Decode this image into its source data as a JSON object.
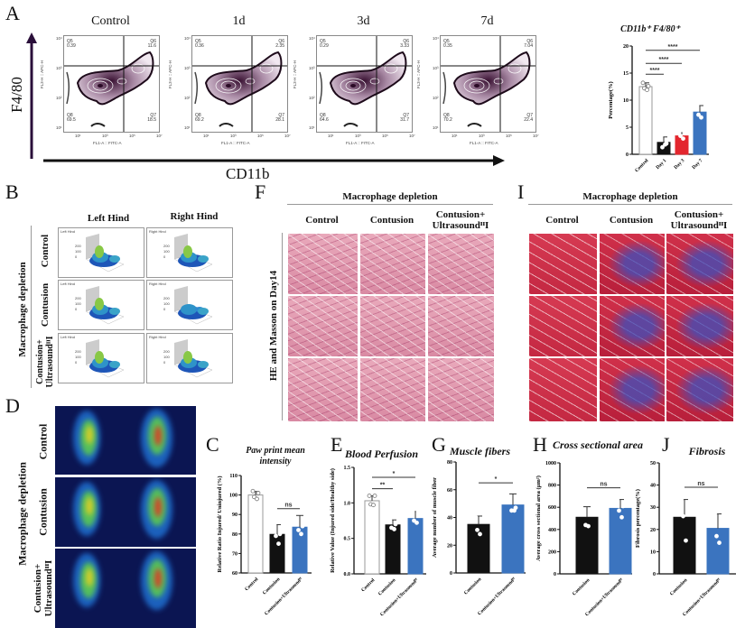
{
  "panels": {
    "A": "A",
    "B": "B",
    "C": "C",
    "D": "D",
    "E": "E",
    "F": "F",
    "G": "G",
    "H": "H",
    "I": "I",
    "J": "J"
  },
  "flow": {
    "y_axis_label": "F4/80",
    "x_axis_label": "CD11b",
    "plot_x_label": "FL1-A :: FITC-A",
    "plot_y_label": "FL3-H :: APC-H",
    "x_ticks": [
      "10¹",
      "10³",
      "10⁵",
      "10⁷"
    ],
    "y_ticks": [
      "10⁴",
      "10³",
      "10²",
      "10¹"
    ],
    "plots": [
      {
        "title": "Control",
        "q5_name": "Q5",
        "q5": "0.39",
        "q6_name": "Q6",
        "q6": "11.6",
        "q8_name": "Q8",
        "q8": "69.5",
        "q7_name": "Q7",
        "q7": "18.5"
      },
      {
        "title": "1d",
        "q5_name": "Q5",
        "q5": "0.36",
        "q6_name": "Q6",
        "q6": "2.35",
        "q8_name": "Q8",
        "q8": "69.2",
        "q7_name": "Q7",
        "q7": "28.1"
      },
      {
        "title": "3d",
        "q5_name": "Q5",
        "q5": "0.29",
        "q6_name": "Q6",
        "q6": "3.33",
        "q8_name": "Q8",
        "q8": "64.6",
        "q7_name": "Q7",
        "q7": "31.7"
      },
      {
        "title": "7d",
        "q5_name": "Q5",
        "q5": "0.35",
        "q6_name": "Q6",
        "q6": "7.04",
        "q8_name": "Q8",
        "q8": "70.2",
        "q7_name": "Q7",
        "q7": "22.4"
      }
    ]
  },
  "gait": {
    "group_label": "Macrophage depletion",
    "col_left": "Left Hind",
    "col_right": "Right Hind",
    "rows": [
      "Control",
      "Contusion",
      "Contusion+ UltrasoundᴵᴵI"
    ],
    "cell_left": "Left Hind",
    "cell_right": "Right Hind",
    "z_ticks": [
      "200",
      "100",
      "0"
    ]
  },
  "histology_he": {
    "title": "Macrophage depletion",
    "side_label": "HE and Masson on Day14",
    "cols": [
      "Control",
      "Contusion",
      "Contusion+ UltrasoundᴵᴵI"
    ]
  },
  "histology_masson": {
    "title": "Macrophage depletion",
    "cols": [
      "Control",
      "Contusion",
      "Contusion+ UltrasoundᴵᴵI"
    ]
  },
  "perfusion_images": {
    "group_label": "Macrophage depletion",
    "rows": [
      "Control",
      "Contusion",
      "Contusion+ UltrasoundᴵᴵI"
    ]
  },
  "colors": {
    "control": "#ffffff",
    "contusion": "#111111",
    "day3": "#e3262e",
    "blue": "#3b74bf"
  },
  "chart_data": [
    {
      "id": "A",
      "type": "bar",
      "title": "CD11b⁺ F4/80⁺",
      "ylabel": "Percentage(%)",
      "ylim": [
        0,
        20
      ],
      "yticks": [
        0,
        5,
        10,
        15,
        20
      ],
      "categories": [
        "Control",
        "Day 1",
        "Day 3",
        "Day 7"
      ],
      "values": [
        12.5,
        2.2,
        3.4,
        7.8
      ],
      "errors": [
        0.7,
        1.0,
        0.6,
        1.2
      ],
      "colors": [
        "#ffffff",
        "#111111",
        "#e3262e",
        "#3b74bf"
      ],
      "points": [
        [
          13.2,
          12.6,
          12.2,
          11.9
        ],
        [
          3.2,
          2.0,
          1.3,
          1.8
        ],
        [
          4.0,
          3.9,
          3.4,
          2.9
        ],
        [
          9.0,
          8.3,
          7.3,
          6.8
        ]
      ],
      "significance": [
        {
          "from": 0,
          "to": 1,
          "label": "****",
          "y": 14.8
        },
        {
          "from": 0,
          "to": 2,
          "label": "****",
          "y": 16.8
        },
        {
          "from": 0,
          "to": 3,
          "label": "****",
          "y": 19.2
        }
      ]
    },
    {
      "id": "C",
      "type": "bar",
      "title": "Paw print mean intensity",
      "ylabel": "Relative Ratio Injured/ Uninjured (%)",
      "ylim": [
        60,
        110
      ],
      "yticks": [
        60,
        70,
        80,
        90,
        100,
        110
      ],
      "categories": [
        "Control",
        "Contusion",
        "Contusion+Ultrasoundᴵᴵ"
      ],
      "values": [
        100,
        79.8,
        83.5
      ],
      "errors": [
        1.8,
        5,
        6
      ],
      "colors": [
        "#ffffff",
        "#111111",
        "#3b74bf"
      ],
      "points": [
        [
          102,
          101,
          99,
          98
        ],
        [
          85,
          80,
          79,
          75
        ],
        [
          92,
          84,
          82,
          80
        ]
      ],
      "significance": [
        {
          "from": 1,
          "to": 2,
          "label": "ns",
          "y": 93
        }
      ]
    },
    {
      "id": "E",
      "type": "bar",
      "title": "Blood Perfusion",
      "ylabel": "Relative Value (Injured side/Healthy side)",
      "ylim": [
        0,
        1.5
      ],
      "yticks": [
        "0.0",
        "0.5",
        "1.0",
        "1.5"
      ],
      "categories": [
        "Control",
        "Contusion",
        "Contusion+Ultrasoundᴵᴵ"
      ],
      "values": [
        1.03,
        0.69,
        0.78
      ],
      "errors": [
        0.07,
        0.07,
        0.1
      ],
      "colors": [
        "#ffffff",
        "#111111",
        "#3b74bf"
      ],
      "points": [
        [
          1.1,
          1.1,
          0.98,
          0.97
        ],
        [
          0.75,
          0.7,
          0.65,
          0.63
        ],
        [
          0.88,
          0.88,
          0.75,
          0.72
        ]
      ],
      "significance": [
        {
          "from": 0,
          "to": 1,
          "label": "**",
          "y": 1.2
        },
        {
          "from": 0,
          "to": 2,
          "label": "*",
          "y": 1.36
        }
      ]
    },
    {
      "id": "G",
      "type": "bar",
      "title": "Muscle fibers",
      "ylabel": "Average number of muscle fiber",
      "ylim": [
        0,
        80
      ],
      "yticks": [
        0,
        20,
        40,
        60,
        80
      ],
      "categories": [
        "Contusion",
        "Contusion+Ultrasoundᴵᴵ"
      ],
      "values": [
        35,
        49
      ],
      "errors": [
        6,
        8
      ],
      "colors": [
        "#111111",
        "#3b74bf"
      ],
      "points": [
        [
          40,
          37,
          31,
          28
        ],
        [
          60,
          47,
          45,
          45
        ]
      ],
      "significance": [
        {
          "from": 0,
          "to": 1,
          "label": "*",
          "y": 65
        }
      ]
    },
    {
      "id": "H",
      "type": "bar",
      "title": "Cross sectional area",
      "ylabel": "Average cross sectional area (μm²)",
      "ylim": [
        0,
        1000
      ],
      "yticks": [
        0,
        200,
        400,
        600,
        800,
        1000
      ],
      "categories": [
        "Contusion",
        "Contusion+Ultrasoundᴵᴵ"
      ],
      "values": [
        510,
        590
      ],
      "errors": [
        95,
        80
      ],
      "colors": [
        "#111111",
        "#3b74bf"
      ],
      "points": [
        [
          630,
          550,
          440,
          430
        ],
        [
          680,
          610,
          570,
          510
        ]
      ],
      "significance": [
        {
          "from": 0,
          "to": 1,
          "label": "ns",
          "y": 775
        }
      ]
    },
    {
      "id": "J",
      "type": "bar",
      "title": "Fibrosis",
      "ylabel": "Fibrosis percentage(%)",
      "ylim": [
        0,
        50
      ],
      "yticks": [
        0,
        10,
        20,
        30,
        40,
        50
      ],
      "categories": [
        "Contusion",
        "Contusion+Ultrasoundᴵᴵ"
      ],
      "values": [
        25.5,
        20.5
      ],
      "errors": [
        8,
        6.5
      ],
      "colors": [
        "#111111",
        "#3b74bf"
      ],
      "points": [
        [
          34,
          28,
          26,
          15
        ],
        [
          27.5,
          24,
          17,
          14
        ]
      ],
      "significance": [
        {
          "from": 0,
          "to": 1,
          "label": "ns",
          "y": 39
        }
      ]
    }
  ]
}
